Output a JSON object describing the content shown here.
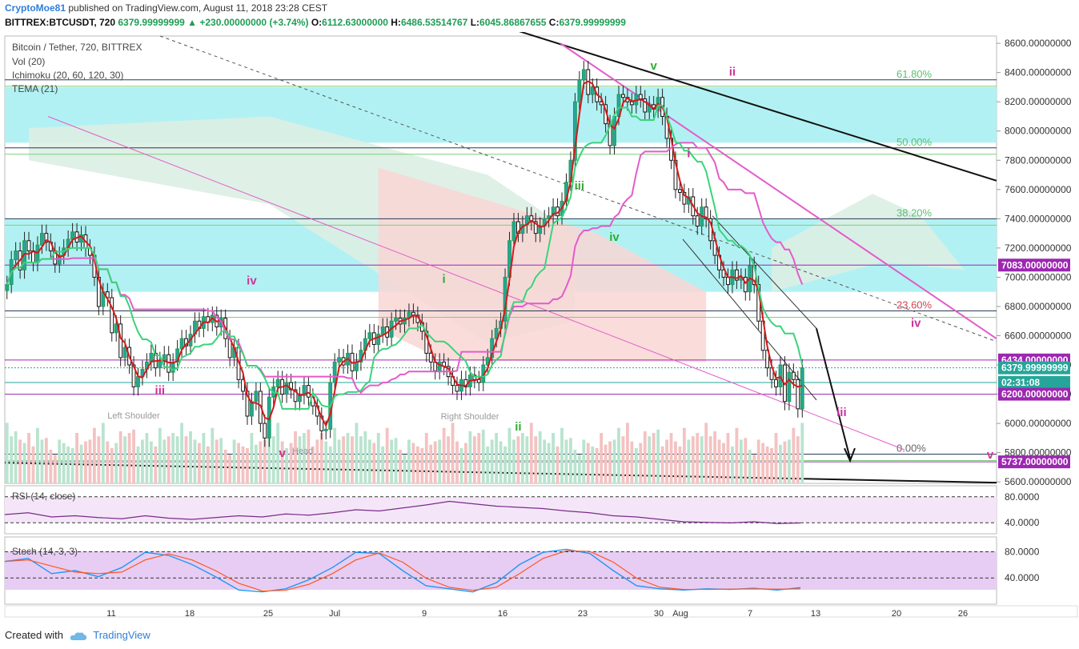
{
  "header": {
    "author": "CryptoMoe81",
    "published_text": " published on TradingView.com, August 11, 2018 23:28 CEST",
    "symbol_line": "BITTREX:BTCUSDT, 720",
    "last": "6379.99999999",
    "change": "▲ +230.00000000 (+3.74%)",
    "open_label": "O:",
    "open": "6112.63000000",
    "high_label": "H:",
    "high": "6486.53514767",
    "low_label": "L:",
    "low": "6045.86867655",
    "close_label": "C:",
    "close": "6379.99999999"
  },
  "legend": {
    "title": "Bitcoin / Tether, 720, BITTREX",
    "vol": "Vol (20)",
    "ichimoku": "Ichimoku (20, 60, 120, 30)",
    "tema": "TEMA (21)",
    "rsi": "RSI (14, close)",
    "stoch": "Stoch (14, 3, 3)"
  },
  "footer": {
    "created_with": "Created with",
    "brand": "TradingView"
  },
  "colors": {
    "bull": "#26a69a",
    "bear": "#ef5350",
    "cyan_zone": "#b2f1f3",
    "kumo_red": "#f9d6d5",
    "kumo_green": "#dbeee3",
    "tema": "#d41a1a",
    "kijun": "#e45bc9",
    "tenkan": "#3ad37b",
    "fib": "#2b3a55",
    "magenta": "#cc3399",
    "elliott_green": "#33aa33"
  },
  "chart_data": {
    "type": "candlestick",
    "title": "Bitcoin / Tether, 720, BITTREX",
    "y_axis": {
      "ticks": [
        "8600.00000000",
        "8400.00000000",
        "8200.00000000",
        "8000.00000000",
        "7800.00000000",
        "7600.00000000",
        "7400.00000000",
        "7200.00000000",
        "7000.00000000",
        "6800.00000000",
        "6600.00000000",
        "6400.00000000",
        "6200.00000000",
        "6000.00000000",
        "5800.00000000",
        "5600.00000000"
      ],
      "range": [
        5590,
        8650
      ]
    },
    "x_axis": {
      "ticks": [
        "11",
        "18",
        "25",
        "Jul",
        "9",
        "16",
        "23",
        "30",
        "Aug",
        "7",
        "13",
        "20",
        "26"
      ]
    },
    "price_tags": [
      {
        "label": "7083.00000000",
        "price": 7083,
        "color": "#9c27b0"
      },
      {
        "label": "6434.00000000",
        "price": 6434,
        "color": "#9c27b0"
      },
      {
        "label": "6379.99999999",
        "price": 6380,
        "color": "#26a69a"
      },
      {
        "label": "02:31:08",
        "price": 6280,
        "color": "#26a69a"
      },
      {
        "label": "6200.00000000",
        "price": 6200,
        "color": "#9c27b0"
      },
      {
        "label": "5737.00000000",
        "price": 5737,
        "color": "#9c27b0"
      }
    ],
    "fibonacci": [
      {
        "label": "61.80%",
        "price": 8350
      },
      {
        "label": "50.00%",
        "price": 7885
      },
      {
        "label": "38.20%",
        "price": 7400
      },
      {
        "label": "23.60%",
        "price": 6770
      },
      {
        "label": "0.00%",
        "price": 5790
      }
    ],
    "elliott_labels": [
      {
        "text": "iv",
        "bar": 56,
        "price": 6950,
        "color": "#cc3399"
      },
      {
        "text": "iii",
        "bar": 35,
        "price": 6200,
        "color": "#cc3399"
      },
      {
        "text": "v",
        "bar": 63,
        "price": 5770,
        "color": "#cc3399"
      },
      {
        "text": "i",
        "bar": 100,
        "price": 6960,
        "color": "#33aa33"
      },
      {
        "text": "ii",
        "bar": 117,
        "price": 5950,
        "color": "#33aa33"
      },
      {
        "text": "iii",
        "bar": 131,
        "price": 7600,
        "color": "#33aa33"
      },
      {
        "text": "iv",
        "bar": 139,
        "price": 7250,
        "color": "#33aa33"
      },
      {
        "text": "v",
        "bar": 148,
        "price": 8420,
        "color": "#33aa33"
      },
      {
        "text": "i",
        "bar": 156,
        "price": 7820,
        "color": "#cc3399"
      },
      {
        "text": "ii",
        "bar": 166,
        "price": 8380,
        "color": "#cc3399"
      },
      {
        "text": "iii",
        "bar": 191,
        "price": 6050,
        "color": "#cc3399"
      },
      {
        "text": "iv",
        "bar": 208,
        "price": 6660,
        "color": "#cc3399"
      },
      {
        "text": "v",
        "bar": 225,
        "price": 5760,
        "color": "#cc3399"
      }
    ],
    "annotations": [
      "Left Shoulder",
      "Right Shoulder",
      "Head"
    ],
    "close_series": [
      6950,
      7120,
      7180,
      7050,
      7250,
      7180,
      7100,
      7220,
      7300,
      7240,
      7180,
      7090,
      7150,
      7200,
      7260,
      7310,
      7240,
      7290,
      7200,
      7150,
      7000,
      6800,
      6900,
      6860,
      6620,
      6680,
      6450,
      6520,
      6400,
      6250,
      6320,
      6370,
      6420,
      6480,
      6380,
      6430,
      6470,
      6350,
      6420,
      6510,
      6580,
      6530,
      6610,
      6700,
      6650,
      6730,
      6690,
      6740,
      6660,
      6720,
      6580,
      6450,
      6520,
      6300,
      6220,
      6050,
      6150,
      6220,
      6000,
      5900,
      6180,
      6250,
      6300,
      6200,
      6280,
      6230,
      6150,
      6190,
      6260,
      6180,
      6120,
      6050,
      5950,
      5960,
      6280,
      6420,
      6450,
      6400,
      6480,
      6360,
      6420,
      6500,
      6580,
      6620,
      6540,
      6610,
      6660,
      6590,
      6700,
      6720,
      6680,
      6720,
      6760,
      6740,
      6690,
      6630,
      6480,
      6420,
      6360,
      6420,
      6390,
      6320,
      6260,
      6220,
      6300,
      6250,
      6330,
      6300,
      6280,
      6400,
      6450,
      6580,
      6650,
      6700,
      7000,
      7250,
      7380,
      7300,
      7360,
      7420,
      7380,
      7300,
      7350,
      7400,
      7420,
      7480,
      7420,
      7520,
      7650,
      7800,
      8200,
      8350,
      8420,
      8250,
      8300,
      8200,
      8180,
      8050,
      7900,
      8100,
      8250,
      8230,
      8200,
      8180,
      8250,
      8220,
      8130,
      8180,
      8150,
      8230,
      8100,
      7950,
      7800,
      7600,
      7580,
      7500,
      7550,
      7420,
      7350,
      7480,
      7400,
      7250,
      7150,
      7050,
      7000,
      6950,
      7050,
      6980,
      7000,
      6900,
      7080,
      6950,
      6700,
      6500,
      6380,
      6300,
      6250,
      6400,
      6150,
      6350,
      6300,
      6100,
      6380
    ],
    "rsi_values": [
      52,
      55,
      48,
      50,
      47,
      45,
      50,
      46,
      44,
      47,
      50,
      48,
      53,
      51,
      55,
      60,
      58,
      63,
      68,
      74,
      70,
      66,
      64,
      62,
      58,
      55,
      50,
      48,
      44,
      40,
      39,
      38,
      40,
      37,
      38
    ],
    "stoch_k": [
      65,
      70,
      45,
      50,
      40,
      55,
      80,
      75,
      60,
      40,
      18,
      15,
      20,
      35,
      55,
      80,
      78,
      50,
      25,
      20,
      15,
      30,
      60,
      80,
      85,
      78,
      50,
      25,
      20,
      18,
      20,
      19,
      21,
      18,
      22
    ],
    "volume_series": [
      360,
      280,
      310,
      260,
      240,
      300,
      220,
      330,
      260,
      270,
      200,
      170,
      260,
      240,
      220,
      210,
      300,
      230,
      250,
      260,
      330,
      280,
      360,
      250,
      210,
      240,
      310,
      280,
      300,
      320,
      220,
      260,
      300,
      250,
      220,
      330,
      260,
      280,
      300,
      280
    ]
  }
}
